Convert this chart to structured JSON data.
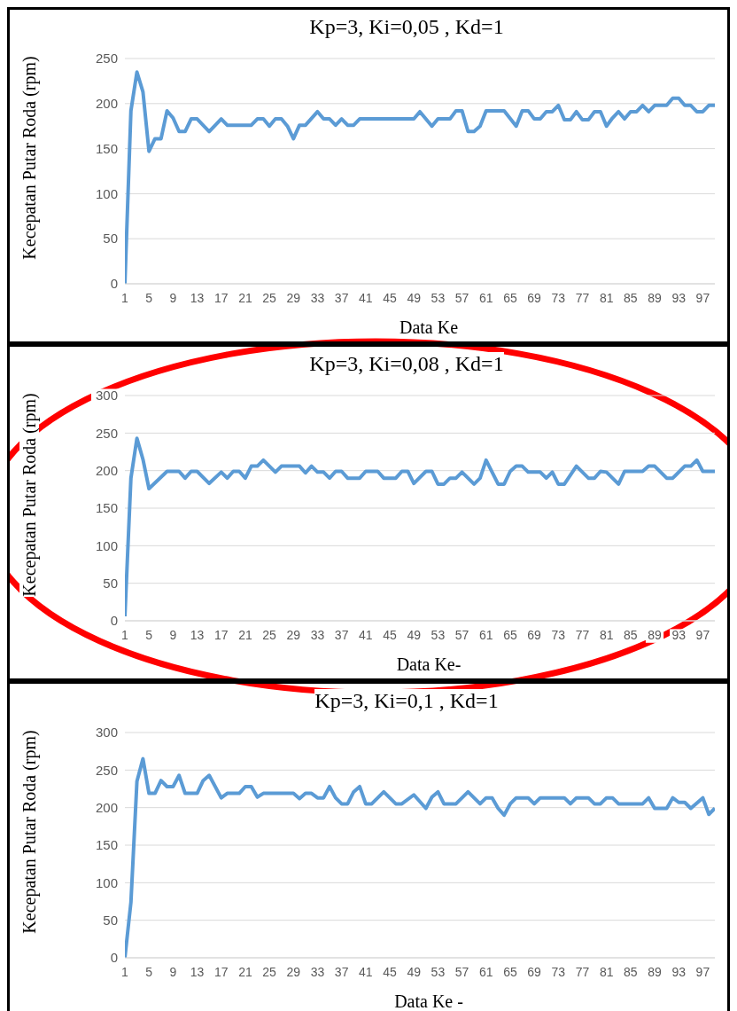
{
  "chart_data": [
    {
      "type": "line",
      "title": "Kp=3, Ki=0,05 , Kd=1",
      "xlabel": "Data Ke",
      "ylabel": "Kecepatan Putar Roda (rpm)",
      "color": "#5b9bd5",
      "marker": "none",
      "grid": "y",
      "xlim": [
        1,
        99
      ],
      "xticks": [
        1,
        5,
        9,
        13,
        17,
        21,
        25,
        29,
        33,
        37,
        41,
        45,
        49,
        53,
        57,
        61,
        65,
        69,
        73,
        77,
        81,
        85,
        89,
        93,
        97
      ],
      "ylim": [
        0,
        250
      ],
      "yticks": [
        0,
        50,
        100,
        150,
        200,
        250
      ],
      "x": [
        1,
        2,
        3,
        4,
        5,
        6,
        7,
        8,
        9,
        10,
        11,
        12,
        13,
        15,
        17,
        18,
        22,
        23,
        24,
        25,
        26,
        27,
        28,
        29,
        30,
        31,
        33,
        34,
        35,
        36,
        37,
        38,
        39,
        40,
        49,
        50,
        52,
        53,
        55,
        56,
        57,
        58,
        59,
        60,
        61,
        64,
        66,
        67,
        68,
        69,
        70,
        71,
        72,
        73,
        74,
        75,
        76,
        77,
        78,
        79,
        80,
        81,
        82,
        83,
        84,
        85,
        86,
        87,
        88,
        89,
        91,
        92,
        93,
        94,
        95,
        96,
        97,
        98,
        99
      ],
      "values": [
        0,
        192,
        235,
        213,
        147,
        161,
        161,
        192,
        184,
        169,
        169,
        183,
        183,
        169,
        183,
        176,
        176,
        183,
        183,
        175,
        183,
        183,
        175,
        161,
        176,
        176,
        191,
        183,
        183,
        176,
        183,
        176,
        176,
        183,
        183,
        191,
        175,
        183,
        183,
        192,
        192,
        169,
        169,
        175,
        192,
        192,
        175,
        192,
        192,
        183,
        183,
        191,
        191,
        198,
        182,
        182,
        191,
        182,
        182,
        191,
        191,
        175,
        184,
        191,
        183,
        191,
        191,
        198,
        191,
        198,
        198,
        206,
        206,
        198,
        198,
        191,
        191,
        198,
        198
      ]
    },
    {
      "type": "line",
      "title": "Kp=3, Ki=0,08 , Kd=1",
      "xlabel": "Data Ke-",
      "ylabel": "Kecepatan Putar Roda (rpm)",
      "color": "#5b9bd5",
      "marker": "none",
      "grid": "y",
      "xlim": [
        1,
        99
      ],
      "xticks": [
        1,
        5,
        9,
        13,
        17,
        21,
        25,
        29,
        33,
        37,
        41,
        45,
        49,
        53,
        57,
        61,
        65,
        69,
        73,
        77,
        81,
        85,
        89,
        93,
        97
      ],
      "ylim": [
        0,
        300
      ],
      "yticks": [
        0,
        50,
        100,
        150,
        200,
        250,
        300
      ],
      "x": [
        1,
        2,
        3,
        4,
        5,
        8,
        10,
        11,
        12,
        13,
        15,
        17,
        18,
        19,
        20,
        21,
        22,
        23,
        24,
        26,
        27,
        30,
        31,
        32,
        33,
        34,
        35,
        36,
        37,
        38,
        40,
        41,
        43,
        44,
        46,
        47,
        48,
        49,
        51,
        52,
        53,
        54,
        55,
        56,
        57,
        59,
        60,
        61,
        63,
        64,
        65,
        66,
        67,
        68,
        70,
        71,
        72,
        73,
        74,
        76,
        78,
        79,
        80,
        81,
        83,
        84,
        87,
        88,
        89,
        91,
        92,
        94,
        95,
        96,
        97,
        99
      ],
      "values": [
        6,
        190,
        243,
        215,
        176,
        199,
        199,
        190,
        199,
        199,
        183,
        198,
        190,
        199,
        199,
        190,
        206,
        206,
        214,
        198,
        206,
        206,
        197,
        206,
        198,
        198,
        190,
        199,
        199,
        190,
        190,
        199,
        199,
        190,
        190,
        199,
        199,
        183,
        199,
        199,
        182,
        182,
        190,
        190,
        198,
        182,
        190,
        214,
        182,
        182,
        199,
        206,
        206,
        198,
        198,
        190,
        198,
        182,
        182,
        206,
        190,
        190,
        199,
        198,
        182,
        199,
        199,
        206,
        206,
        190,
        190,
        206,
        206,
        214,
        199,
        199
      ]
    },
    {
      "type": "line",
      "title": "Kp=3, Ki=0,1 , Kd=1",
      "xlabel": "Data Ke -",
      "ylabel": "Kecepatan Putar Roda (rpm)",
      "color": "#5b9bd5",
      "marker": "none",
      "grid": "y",
      "xlim": [
        1,
        99
      ],
      "xticks": [
        1,
        5,
        9,
        13,
        17,
        21,
        25,
        29,
        33,
        37,
        41,
        45,
        49,
        53,
        57,
        61,
        65,
        69,
        73,
        77,
        81,
        85,
        89,
        93,
        97
      ],
      "ylim": [
        0,
        300
      ],
      "yticks": [
        0,
        50,
        100,
        150,
        200,
        250,
        300
      ],
      "x": [
        1,
        2,
        3,
        4,
        5,
        6,
        7,
        8,
        9,
        10,
        11,
        13,
        14,
        15,
        17,
        18,
        20,
        21,
        22,
        23,
        24,
        29,
        30,
        31,
        32,
        33,
        34,
        35,
        36,
        37,
        38,
        39,
        40,
        41,
        42,
        44,
        46,
        47,
        49,
        51,
        52,
        53,
        54,
        56,
        58,
        60,
        61,
        62,
        63,
        64,
        65,
        66,
        68,
        69,
        70,
        74,
        75,
        76,
        78,
        79,
        80,
        81,
        82,
        83,
        87,
        88,
        89,
        91,
        92,
        93,
        94,
        95,
        97,
        98,
        99
      ],
      "values": [
        0,
        74,
        235,
        265,
        219,
        219,
        236,
        228,
        228,
        243,
        219,
        219,
        236,
        243,
        213,
        219,
        219,
        228,
        228,
        214,
        219,
        219,
        212,
        219,
        219,
        213,
        213,
        228,
        213,
        205,
        205,
        221,
        228,
        205,
        205,
        221,
        205,
        205,
        217,
        199,
        214,
        221,
        205,
        205,
        221,
        205,
        213,
        213,
        199,
        190,
        205,
        213,
        213,
        205,
        213,
        213,
        205,
        213,
        213,
        205,
        205,
        213,
        213,
        205,
        205,
        213,
        199,
        199,
        213,
        207,
        207,
        199,
        213,
        191,
        199
      ]
    }
  ]
}
